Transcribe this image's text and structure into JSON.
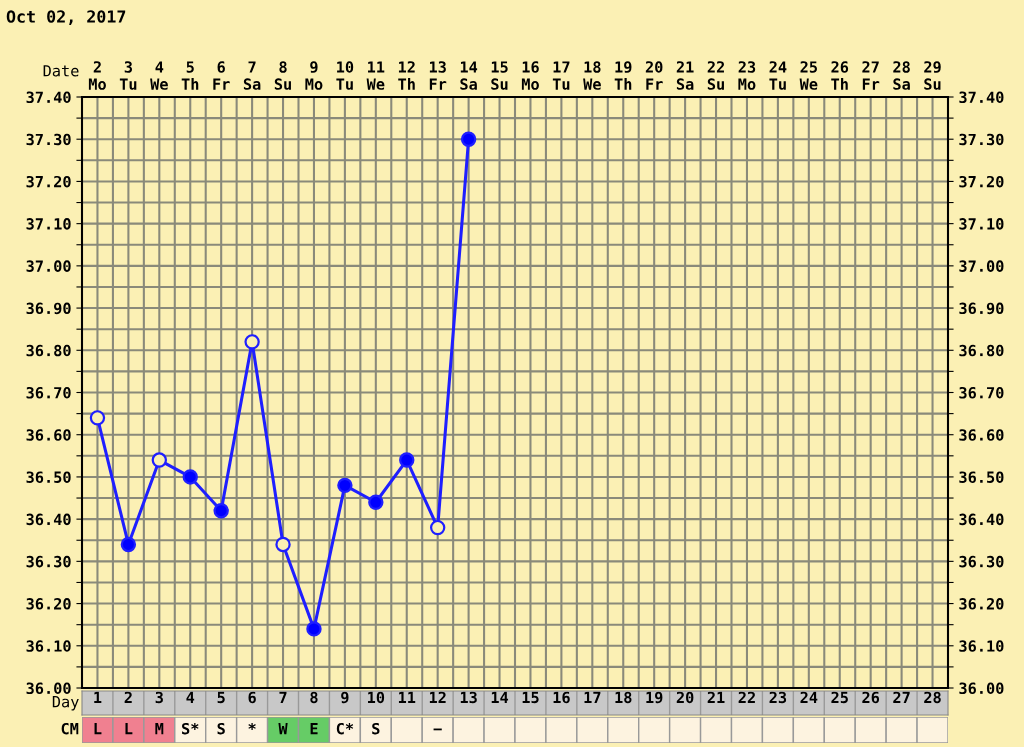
{
  "chart_data": [
    {
      "type": "line",
      "title": "Oct 02, 2017",
      "xlabel": "Date",
      "x2label": "Day",
      "series": [
        {
          "color": "#1f1fff",
          "values": [
            36.64,
            36.34,
            36.54,
            36.5,
            36.42,
            36.82,
            36.34,
            36.14,
            36.48,
            36.44,
            36.54,
            36.38,
            37.3,
            null,
            null,
            null,
            null,
            null,
            null,
            null,
            null,
            null,
            null,
            null,
            null,
            null,
            null,
            null
          ],
          "colors": [
            "#fbf0b4",
            "#0000ff",
            "#fbf0b4",
            "#0000ff",
            "#0000ff",
            "#fbf0b4",
            "#fbf0b4",
            "#0000ff",
            "#0000ff",
            "#0000ff",
            "#0000ff",
            "#fbf0b4",
            "#0000ff",
            null,
            null,
            null,
            null,
            null,
            null,
            null,
            null,
            null,
            null,
            null,
            null,
            null,
            null,
            null
          ]
        }
      ],
      "marker": "circle",
      "line_style": "solid",
      "grid": true,
      "x2lim": [
        0.5,
        28.5
      ],
      "x2ticks": [
        1,
        2,
        3,
        4,
        5,
        6,
        7,
        8,
        9,
        10,
        11,
        12,
        13,
        14,
        15,
        16,
        17,
        18,
        19,
        20,
        21,
        22,
        23,
        24,
        25,
        26,
        27,
        28
      ],
      "categories": [
        "2\nMo",
        "3\nTu",
        "4\nWe",
        "5\nTh",
        "6\nFr",
        "7\nSa",
        "8\nSu",
        "9\nMo",
        "10\nTu",
        "11\nWe",
        "12\nTh",
        "13\nFr",
        "14\nSa",
        "15\nSu",
        "16\nMo",
        "17\nTu",
        "18\nWe",
        "19\nTh",
        "20\nFr",
        "21\nSa",
        "22\nSu",
        "23\nMo",
        "24\nTu",
        "25\nWe",
        "26\nTh",
        "27\nFr",
        "28\nSa",
        "29\nSu"
      ],
      "ylim": [
        36.0,
        37.4
      ],
      "yticks": [
        {
          "value": 36.0,
          "label": "36.00"
        },
        {
          "value": 36.05,
          "label": null
        },
        {
          "value": 36.1,
          "label": "36.10"
        },
        {
          "value": 36.15,
          "label": null
        },
        {
          "value": 36.2,
          "label": "36.20"
        },
        {
          "value": 36.25,
          "label": null
        },
        {
          "value": 36.3,
          "label": "36.30"
        },
        {
          "value": 36.35,
          "label": null
        },
        {
          "value": 36.4,
          "label": "36.40"
        },
        {
          "value": 36.45,
          "label": null
        },
        {
          "value": 36.5,
          "label": "36.50"
        },
        {
          "value": 36.55,
          "label": null
        },
        {
          "value": 36.6,
          "label": "36.60"
        },
        {
          "value": 36.65,
          "label": null
        },
        {
          "value": 36.7,
          "label": "36.70"
        },
        {
          "value": 36.75,
          "label": null
        },
        {
          "value": 36.8,
          "label": "36.80"
        },
        {
          "value": 36.85,
          "label": null
        },
        {
          "value": 36.9,
          "label": "36.90"
        },
        {
          "value": 36.95,
          "label": null
        },
        {
          "value": 37.0,
          "label": "37.00"
        },
        {
          "value": 37.05,
          "label": null
        },
        {
          "value": 37.1,
          "label": "37.10"
        },
        {
          "value": 37.15,
          "label": null
        },
        {
          "value": 37.2,
          "label": "37.20"
        },
        {
          "value": 37.25,
          "label": null
        },
        {
          "value": 37.3,
          "label": "37.30"
        },
        {
          "value": 37.35,
          "label": null
        },
        {
          "value": 37.4,
          "label": "37.40"
        }
      ],
      "y2lim": [
        36.0,
        37.4
      ],
      "y2ticks": [
        {
          "value": 36.0,
          "label": "36.00"
        },
        {
          "value": 36.05,
          "label": null
        },
        {
          "value": 36.1,
          "label": "36.10"
        },
        {
          "value": 36.15,
          "label": null
        },
        {
          "value": 36.2,
          "label": "36.20"
        },
        {
          "value": 36.25,
          "label": null
        },
        {
          "value": 36.3,
          "label": "36.30"
        },
        {
          "value": 36.35,
          "label": null
        },
        {
          "value": 36.4,
          "label": "36.40"
        },
        {
          "value": 36.45,
          "label": null
        },
        {
          "value": 36.5,
          "label": "36.50"
        },
        {
          "value": 36.55,
          "label": null
        },
        {
          "value": 36.6,
          "label": "36.60"
        },
        {
          "value": 36.65,
          "label": null
        },
        {
          "value": 36.7,
          "label": "36.70"
        },
        {
          "value": 36.75,
          "label": null
        },
        {
          "value": 36.8,
          "label": "36.80"
        },
        {
          "value": 36.85,
          "label": null
        },
        {
          "value": 36.9,
          "label": "36.90"
        },
        {
          "value": 36.95,
          "label": null
        },
        {
          "value": 37.0,
          "label": "37.00"
        },
        {
          "value": 37.05,
          "label": null
        },
        {
          "value": 37.1,
          "label": "37.10"
        },
        {
          "value": 37.15,
          "label": null
        },
        {
          "value": 37.2,
          "label": "37.20"
        },
        {
          "value": 37.25,
          "label": null
        },
        {
          "value": 37.3,
          "label": "37.30"
        },
        {
          "value": 37.35,
          "label": null
        },
        {
          "value": 37.4,
          "label": "37.40"
        }
      ]
    },
    {
      "type": "other",
      "title": "CM",
      "categories": [
        "L",
        "L",
        "M",
        "S*",
        "S",
        "*",
        "W",
        "E",
        "C*",
        "S",
        null,
        "−",
        null,
        null,
        null,
        null,
        null,
        null,
        null,
        null,
        null,
        null,
        null,
        null,
        null,
        null,
        null,
        null
      ],
      "colors": [
        "#f08090",
        "#f08090",
        "#f08090",
        "#fdf3e0",
        "#fdf3e0",
        "#fdf3e0",
        "#66cc66",
        "#66cc66",
        "#fdf3e0",
        "#fdf3e0",
        "#fdf3e0",
        "#fdf3e0",
        "#fdf3e0",
        "#fdf3e0",
        "#fdf3e0",
        "#fdf3e0",
        "#fdf3e0",
        "#fdf3e0",
        "#fdf3e0",
        "#fdf3e0",
        "#fdf3e0",
        "#fdf3e0",
        "#fdf3e0",
        "#fdf3e0",
        "#fdf3e0",
        "#fdf3e0",
        "#fdf3e0",
        "#fdf3e0"
      ]
    }
  ]
}
